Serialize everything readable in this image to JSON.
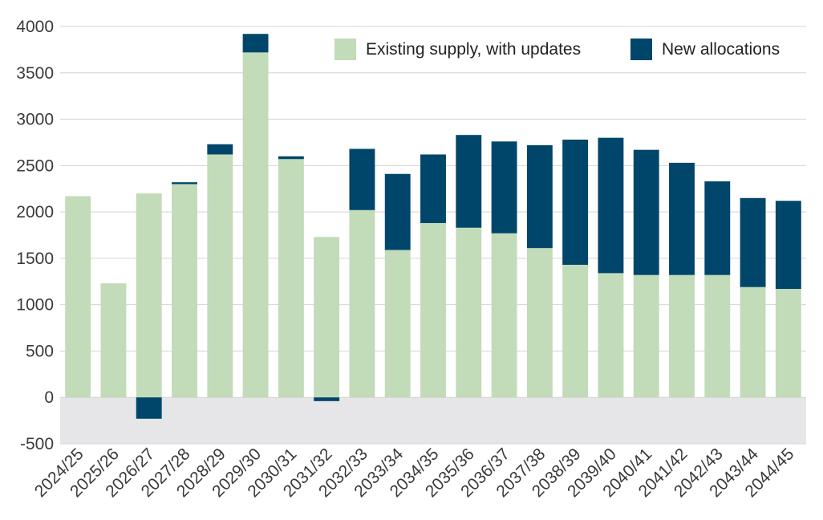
{
  "chart_data": {
    "type": "bar",
    "stacked": true,
    "title": "",
    "xlabel": "",
    "ylabel": "",
    "ylim": [
      -500,
      4000
    ],
    "yticks": [
      4000,
      3500,
      3000,
      2500,
      2000,
      1500,
      1000,
      500,
      0,
      -500
    ],
    "grid": true,
    "negative_region_shaded": true,
    "legend_position": "top-right",
    "categories": [
      "2024/25",
      "2025/26",
      "2026/27",
      "2027/28",
      "2028/29",
      "2029/30",
      "2030/31",
      "2031/32",
      "2032/33",
      "2033/34",
      "2034/35",
      "2035/36",
      "2036/37",
      "2037/38",
      "2038/39",
      "2039/40",
      "2040/41",
      "2041/42",
      "2042/43",
      "2043/44",
      "2044/45"
    ],
    "series": [
      {
        "name": "Existing supply, with updates",
        "color": "#c2dbb8",
        "values": [
          2170,
          1230,
          2200,
          2300,
          2620,
          3720,
          2570,
          1730,
          2020,
          1590,
          1880,
          1830,
          1770,
          1610,
          1430,
          1340,
          1320,
          1320,
          1320,
          1190,
          1170
        ]
      },
      {
        "name": "New allocations",
        "color": "#00466b",
        "values": [
          0,
          0,
          -230,
          20,
          110,
          200,
          30,
          -40,
          660,
          820,
          740,
          1000,
          990,
          1110,
          1350,
          1460,
          1350,
          1210,
          1010,
          960,
          950
        ]
      }
    ]
  }
}
